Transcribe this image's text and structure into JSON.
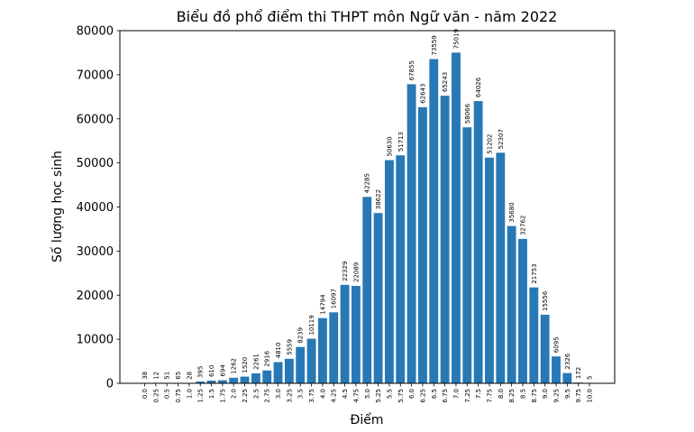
{
  "chart_data": {
    "type": "bar",
    "title": "Biểu đồ phổ điểm thi THPT môn Ngữ văn - năm 2022",
    "xlabel": "Điểm",
    "ylabel": "Số lượng học sinh",
    "ylim": [
      0,
      80000
    ],
    "yticks": [
      "0",
      "10000",
      "20000",
      "30000",
      "40000",
      "50000",
      "60000",
      "70000",
      "80000"
    ],
    "bar_color": "#2878b5",
    "grid": false,
    "categories": [
      "0.0",
      "0.25",
      "0.5",
      "0.75",
      "1.0",
      "1.25",
      "1.5",
      "1.75",
      "2.0",
      "2.25",
      "2.5",
      "2.75",
      "3.0",
      "3.25",
      "3.5",
      "3.75",
      "4.0",
      "4.25",
      "4.5",
      "4.75",
      "5.0",
      "5.25",
      "5.5",
      "5.75",
      "6.0",
      "6.25",
      "6.5",
      "6.75",
      "7.0",
      "7.25",
      "7.5",
      "7.75",
      "8.0",
      "8.25",
      "8.5",
      "8.75",
      "9.0",
      "9.25",
      "9.5",
      "9.75",
      "10.0"
    ],
    "values": [
      38,
      12,
      51,
      65,
      28,
      395,
      610,
      694,
      1262,
      1520,
      2261,
      2916,
      4810,
      5559,
      8239,
      10119,
      14794,
      16097,
      22329,
      22089,
      42285,
      38622,
      50630,
      51713,
      67855,
      62643,
      73559,
      65243,
      75019,
      58066,
      64026,
      51202,
      52307,
      35680,
      32762,
      21753,
      15556,
      6095,
      2326,
      172,
      5
    ]
  }
}
